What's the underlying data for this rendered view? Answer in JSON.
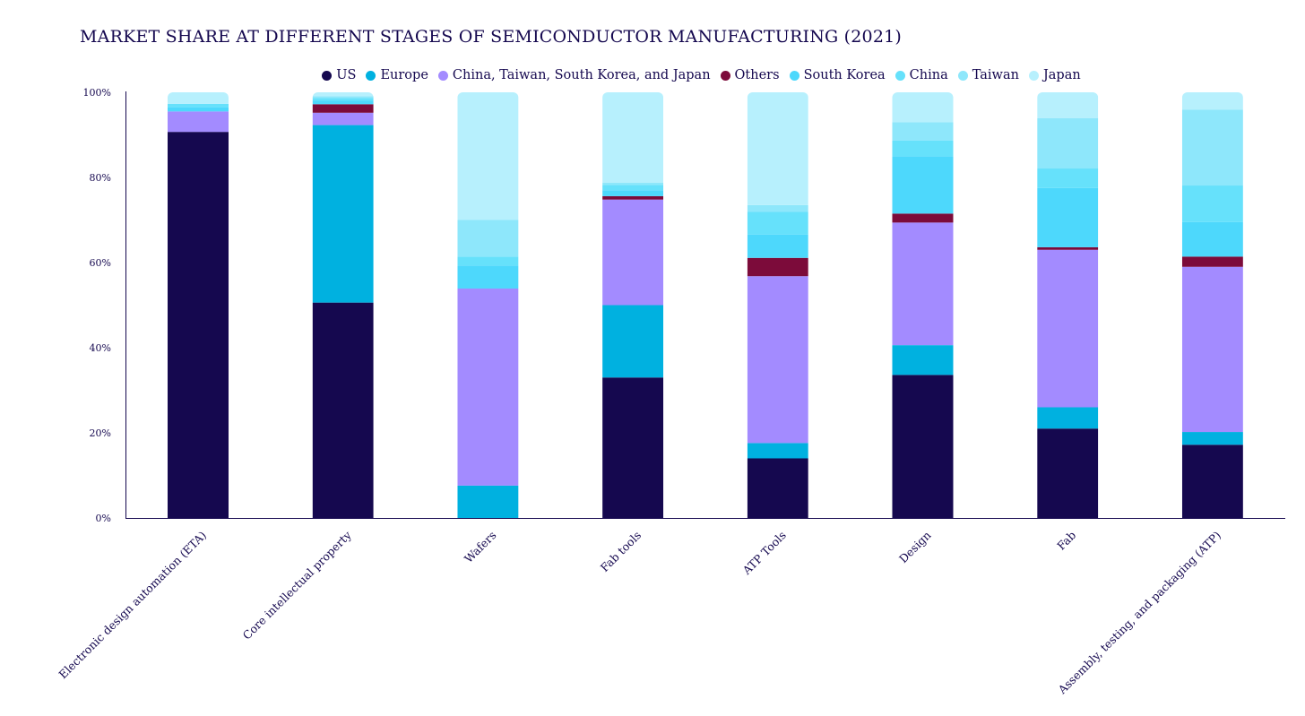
{
  "chart_data": {
    "type": "bar",
    "stacked": true,
    "title": "MARKET SHARE AT DIFFERENT STAGES OF SEMICONDUCTOR MANUFACTURING (2021)",
    "xlabel": "",
    "ylabel": "",
    "ylim": [
      0,
      100
    ],
    "yticks": [
      "0%",
      "20%",
      "40%",
      "60%",
      "80%",
      "100%"
    ],
    "legend_position": "top-center",
    "grid": false,
    "categories": [
      "Electronic design automation (ETA)",
      "Core intellectual property",
      "Wafers",
      "Fab tools",
      "ATP Tools",
      "Design",
      "Fab",
      "Assembly, testing, and packaging (ATP)"
    ],
    "series": [
      {
        "name": "US",
        "color": "#15084f",
        "values": [
          90.7,
          50.6,
          0,
          33,
          14,
          33.6,
          21,
          17.2
        ]
      },
      {
        "name": "Europe",
        "color": "#00b1e0",
        "values": [
          0,
          41.7,
          7.6,
          17,
          3.6,
          7,
          5,
          3
        ]
      },
      {
        "name": "China, Taiwan, South Korea, and Japan",
        "color": "#a38bff",
        "values": [
          4.8,
          2.9,
          46.3,
          24.8,
          39.2,
          28.8,
          37,
          38.8
        ]
      },
      {
        "name": "Others",
        "color": "#7c0b3a",
        "values": [
          0,
          2,
          0,
          0.8,
          4.3,
          2.1,
          0.6,
          2.4
        ]
      },
      {
        "name": "South Korea",
        "color": "#4dd8fc",
        "values": [
          1,
          0.8,
          5.4,
          1.4,
          5.5,
          13.5,
          13.9,
          8.1
        ]
      },
      {
        "name": "China",
        "color": "#66e1fb",
        "values": [
          0.8,
          0.7,
          2.1,
          1.2,
          5.3,
          3.7,
          4.6,
          8.6
        ]
      },
      {
        "name": "Taiwan",
        "color": "#8ee7fb",
        "values": [
          0,
          0.4,
          8.6,
          0.6,
          1.6,
          4.3,
          11.8,
          17.8
        ]
      },
      {
        "name": "Japan",
        "color": "#b7f0fd",
        "values": [
          2.7,
          0.9,
          30,
          21.2,
          26.5,
          7,
          6.1,
          4.1
        ]
      }
    ]
  }
}
